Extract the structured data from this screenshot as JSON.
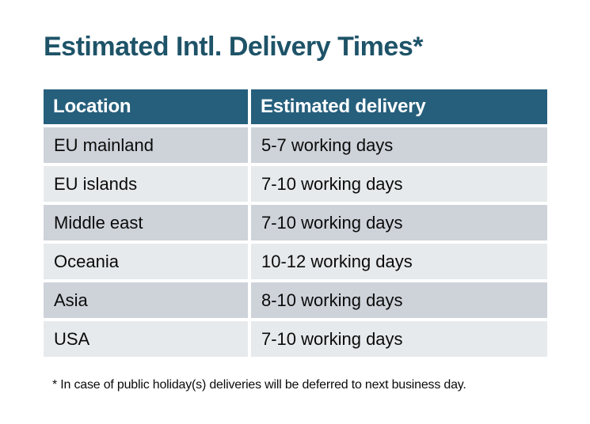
{
  "title": "Estimated Intl. Delivery Times*",
  "footnote": "* In case of public holiday(s) deliveries will be deferred to next business day.",
  "table": {
    "columns": [
      "Location",
      "Estimated delivery"
    ],
    "rows": [
      {
        "location": "EU mainland",
        "delivery": "5-7 working days"
      },
      {
        "location": "EU islands",
        "delivery": "7-10 working days"
      },
      {
        "location": "Middle east",
        "delivery": "7-10 working days"
      },
      {
        "location": "Oceania",
        "delivery": "10-12 working days"
      },
      {
        "location": "Asia",
        "delivery": "8-10 working days"
      },
      {
        "location": "USA",
        "delivery": "7-10 working days"
      }
    ]
  },
  "chart_data": {
    "type": "table",
    "title": "Estimated Intl. Delivery Times*",
    "columns": [
      "Location",
      "Estimated delivery"
    ],
    "rows": [
      [
        "EU mainland",
        "5-7 working days"
      ],
      [
        "EU islands",
        "7-10 working days"
      ],
      [
        "Middle east",
        "7-10 working days"
      ],
      [
        "Oceania",
        "10-12 working days"
      ],
      [
        "Asia",
        "8-10 working days"
      ],
      [
        "USA",
        "7-10 working days"
      ]
    ],
    "footnote": "* In case of public holiday(s) deliveries will be deferred to next business day.",
    "layout": {
      "header_style": "solid fill, white bold text",
      "body_style": "alternating row shading, white gaps between cells"
    }
  },
  "colors": {
    "title_text": "#1E5368",
    "header_bg": "#265F7C",
    "header_text": "#FFFFFF",
    "row_dark": "#CED3DA",
    "row_light": "#E7EAEC",
    "cell_text": "#0B0B0B",
    "background": "#FFFFFF"
  }
}
